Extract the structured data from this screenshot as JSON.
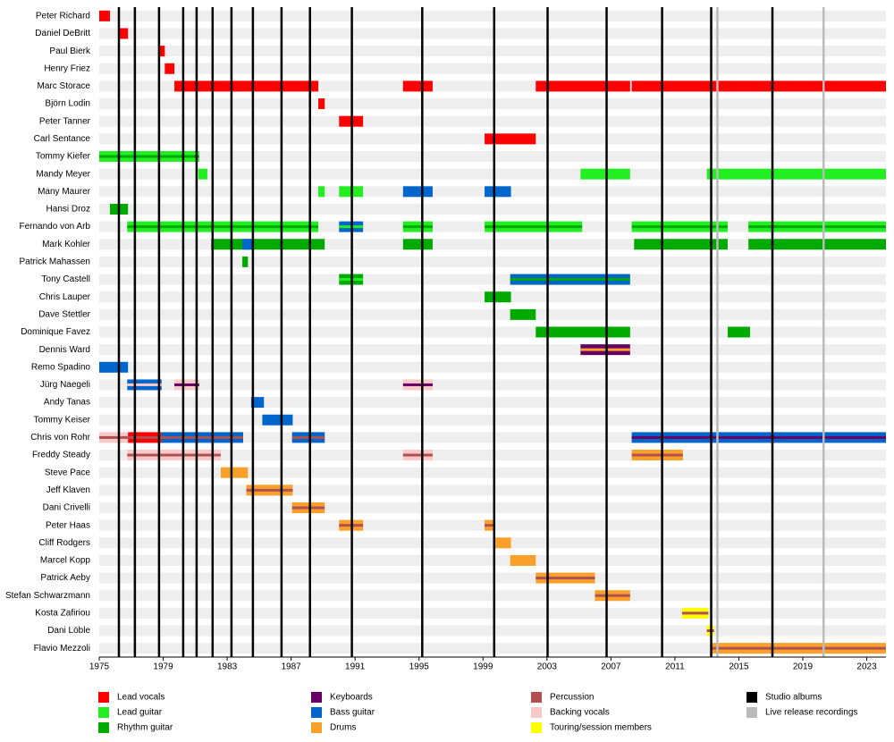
{
  "chart_data": {
    "type": "timeline",
    "xlim": [
      1975,
      2024.2
    ],
    "xticks": [
      1975,
      1979,
      1983,
      1987,
      1991,
      1995,
      1999,
      2003,
      2007,
      2011,
      2015,
      2019,
      2023
    ],
    "roles": [
      {
        "name": "Lead vocals",
        "color": "#ff0000"
      },
      {
        "name": "Lead guitar",
        "color": "#22ee22"
      },
      {
        "name": "Rhythm guitar",
        "color": "#00aa00"
      },
      {
        "name": "Keyboards",
        "color": "#660066"
      },
      {
        "name": "Bass guitar",
        "color": "#0066cc"
      },
      {
        "name": "Drums",
        "color": "#f9a02a"
      },
      {
        "name": "Percussion",
        "color": "#b05050"
      },
      {
        "name": "Backing vocals",
        "color": "#f9c8c8"
      },
      {
        "name": "Touring/session members",
        "color": "#ffff00"
      }
    ],
    "studio_albums": {
      "name": "Studio albums",
      "color": "#000000",
      "x": [
        1976.23,
        1977.23,
        1978.74,
        1980.25,
        1981.09,
        1982.09,
        1983.27,
        1984.61,
        1986.4,
        1988.18,
        1990.8,
        1995.2,
        1999.7,
        2003.04,
        2006.73,
        2010.2,
        2013.27,
        2017.1
      ]
    },
    "live_releases": {
      "name": "Live release recordings",
      "color": "#bbbbbb",
      "x": [
        2013.66,
        2020.3
      ]
    },
    "members": [
      {
        "name": "Peter Richard",
        "periods": [
          {
            "from": 1975,
            "to": 1975.67,
            "role": "Lead vocals"
          }
        ]
      },
      {
        "name": "Daniel DeBritt",
        "periods": [
          {
            "from": 1976.2,
            "to": 1976.8,
            "role": "Lead vocals"
          }
        ]
      },
      {
        "name": "Paul Bierk",
        "periods": [
          {
            "from": 1978.8,
            "to": 1979.1,
            "role": "Lead vocals"
          }
        ]
      },
      {
        "name": "Henry Friez",
        "periods": [
          {
            "from": 1979.1,
            "to": 1979.7,
            "role": "Lead vocals"
          }
        ]
      },
      {
        "name": "Marc Storace",
        "periods": [
          {
            "from": 1979.7,
            "to": 1988.7,
            "role": "Lead vocals"
          },
          {
            "from": 1994,
            "to": 1995.85,
            "role": "Lead vocals"
          },
          {
            "from": 2002.3,
            "to": 2008.2,
            "role": "Lead vocals"
          },
          {
            "from": 2008.3,
            "to": 2024.2,
            "role": "Lead vocals"
          }
        ]
      },
      {
        "name": "Björn Lodin",
        "periods": [
          {
            "from": 1988.7,
            "to": 1989.1,
            "role": "Lead vocals"
          }
        ]
      },
      {
        "name": "Peter Tanner",
        "periods": [
          {
            "from": 1990,
            "to": 1991.5,
            "role": "Lead vocals"
          }
        ]
      },
      {
        "name": "Carl Sentance",
        "periods": [
          {
            "from": 1999.1,
            "to": 2002.3,
            "role": "Lead vocals"
          }
        ]
      },
      {
        "name": "Tommy Kiefer",
        "periods": [
          {
            "from": 1975,
            "to": 1981.25,
            "role": "Lead guitar",
            "stripe": "Rhythm guitar"
          }
        ]
      },
      {
        "name": "Mandy Meyer",
        "periods": [
          {
            "from": 1981.2,
            "to": 1981.76,
            "role": "Lead guitar"
          },
          {
            "from": 2005.1,
            "to": 2008.2,
            "role": "Lead guitar"
          },
          {
            "from": 2013,
            "to": 2024.2,
            "role": "Lead guitar"
          }
        ]
      },
      {
        "name": "Many Maurer",
        "periods": [
          {
            "from": 1988.7,
            "to": 1989.1,
            "role": "Lead guitar"
          },
          {
            "from": 1990,
            "to": 1991.5,
            "role": "Lead guitar"
          },
          {
            "from": 1994,
            "to": 1995.85,
            "role": "Bass guitar"
          },
          {
            "from": 1999.1,
            "to": 2000.75,
            "role": "Bass guitar"
          }
        ]
      },
      {
        "name": "Hansi Droz",
        "periods": [
          {
            "from": 1975.67,
            "to": 1976.8,
            "role": "Rhythm guitar"
          }
        ]
      },
      {
        "name": "Fernando von Arb",
        "periods": [
          {
            "from": 1976.75,
            "to": 1988.7,
            "role": "Lead guitar",
            "stripe": "Rhythm guitar"
          },
          {
            "from": 1990,
            "to": 1991.5,
            "role": "Bass guitar",
            "stripe": "Lead guitar"
          },
          {
            "from": 1994,
            "to": 1995.85,
            "role": "Lead guitar",
            "stripe": "Rhythm guitar"
          },
          {
            "from": 1999.1,
            "to": 2005.2,
            "role": "Lead guitar",
            "stripe": "Rhythm guitar"
          },
          {
            "from": 2008.3,
            "to": 2014.3,
            "role": "Lead guitar",
            "stripe": "Rhythm guitar"
          },
          {
            "from": 2015.6,
            "to": 2024.2,
            "role": "Lead guitar",
            "stripe": "Rhythm guitar"
          }
        ]
      },
      {
        "name": "Mark Kohler",
        "periods": [
          {
            "from": 1982,
            "to": 1989.1,
            "role": "Rhythm guitar"
          },
          {
            "from": 1983.95,
            "to": 1984.55,
            "role": "Bass guitar"
          },
          {
            "from": 1994,
            "to": 1995.85,
            "role": "Rhythm guitar"
          },
          {
            "from": 2008.45,
            "to": 2014.3,
            "role": "Rhythm guitar"
          },
          {
            "from": 2015.6,
            "to": 2024.2,
            "role": "Rhythm guitar"
          }
        ]
      },
      {
        "name": "Patrick Mahassen",
        "periods": [
          {
            "from": 1983.95,
            "to": 1984.3,
            "role": "Rhythm guitar"
          }
        ]
      },
      {
        "name": "Tony Castell",
        "periods": [
          {
            "from": 1990,
            "to": 1991.5,
            "role": "Rhythm guitar",
            "stripe": "Lead guitar"
          },
          {
            "from": 2000.7,
            "to": 2008.2,
            "role": "Bass guitar",
            "stripe": "Rhythm guitar"
          }
        ]
      },
      {
        "name": "Chris Lauper",
        "periods": [
          {
            "from": 1999.1,
            "to": 2000.75,
            "role": "Rhythm guitar"
          }
        ]
      },
      {
        "name": "Dave Stettler",
        "periods": [
          {
            "from": 2000.7,
            "to": 2002.3,
            "role": "Rhythm guitar"
          }
        ]
      },
      {
        "name": "Dominique Favez",
        "periods": [
          {
            "from": 2002.3,
            "to": 2008.2,
            "role": "Rhythm guitar"
          },
          {
            "from": 2014.3,
            "to": 2015.7,
            "role": "Rhythm guitar"
          }
        ]
      },
      {
        "name": "Dennis Ward",
        "periods": [
          {
            "from": 2005.1,
            "to": 2008.2,
            "role": "Keyboards",
            "stripe": "Drums"
          }
        ]
      },
      {
        "name": "Remo Spadino",
        "periods": [
          {
            "from": 1975,
            "to": 1976.8,
            "role": "Bass guitar"
          }
        ]
      },
      {
        "name": "Jürg Naegeli",
        "periods": [
          {
            "from": 1976.75,
            "to": 1978.9,
            "role": "Bass guitar",
            "stripe": "Backing vocals"
          },
          {
            "from": 1979.7,
            "to": 1981.25,
            "role": "Backing vocals",
            "stripe": "Keyboards"
          },
          {
            "from": 1994,
            "to": 1995.85,
            "role": "Backing vocals",
            "stripe": "Keyboards"
          }
        ]
      },
      {
        "name": "Andy Tanas",
        "periods": [
          {
            "from": 1984.5,
            "to": 1985.3,
            "role": "Bass guitar"
          }
        ]
      },
      {
        "name": "Tommy Keiser",
        "periods": [
          {
            "from": 1985.2,
            "to": 1987.1,
            "role": "Bass guitar"
          }
        ]
      },
      {
        "name": "Chris von Rohr",
        "periods": [
          {
            "from": 1975,
            "to": 1976.8,
            "role": "Backing vocals",
            "stripe": "Percussion"
          },
          {
            "from": 1976.8,
            "to": 1978.9,
            "role": "Lead vocals",
            "stripe": "Percussion"
          },
          {
            "from": 1978.9,
            "to": 1984,
            "role": "Bass guitar",
            "stripe": "Percussion"
          },
          {
            "from": 1987.06,
            "to": 1989.1,
            "role": "Bass guitar",
            "stripe": "Percussion"
          },
          {
            "from": 2008.3,
            "to": 2024.2,
            "role": "Bass guitar",
            "stripe": "Keyboards"
          }
        ]
      },
      {
        "name": "Freddy Steady",
        "periods": [
          {
            "from": 1976.75,
            "to": 1982.6,
            "role": "Backing vocals",
            "stripe": "Percussion"
          },
          {
            "from": 1994,
            "to": 1995.85,
            "role": "Backing vocals",
            "stripe": "Percussion"
          },
          {
            "from": 2008.3,
            "to": 2011.5,
            "role": "Drums",
            "stripe": "Percussion"
          }
        ]
      },
      {
        "name": "Steve Pace",
        "periods": [
          {
            "from": 1982.6,
            "to": 1984.3,
            "role": "Drums"
          }
        ]
      },
      {
        "name": "Jeff Klaven",
        "periods": [
          {
            "from": 1984.2,
            "to": 1987.1,
            "role": "Drums",
            "stripe": "Percussion"
          }
        ]
      },
      {
        "name": "Dani Crivelli",
        "periods": [
          {
            "from": 1987.06,
            "to": 1989.1,
            "role": "Drums",
            "stripe": "Percussion"
          }
        ]
      },
      {
        "name": "Peter Haas",
        "periods": [
          {
            "from": 1990,
            "to": 1991.5,
            "role": "Drums",
            "stripe": "Percussion"
          },
          {
            "from": 1999.1,
            "to": 1999.75,
            "role": "Drums",
            "stripe": "Percussion"
          }
        ]
      },
      {
        "name": "Cliff Rodgers",
        "periods": [
          {
            "from": 1999.75,
            "to": 2000.75,
            "role": "Drums"
          }
        ]
      },
      {
        "name": "Marcel Kopp",
        "periods": [
          {
            "from": 2000.7,
            "to": 2002.3,
            "role": "Drums"
          }
        ]
      },
      {
        "name": "Patrick Aeby",
        "periods": [
          {
            "from": 2002.3,
            "to": 2006,
            "role": "Drums",
            "stripe": "Percussion"
          }
        ]
      },
      {
        "name": "Stefan Schwarzmann",
        "periods": [
          {
            "from": 2006,
            "to": 2008.2,
            "role": "Drums",
            "stripe": "Percussion"
          }
        ]
      },
      {
        "name": "Kosta Zafiriou",
        "periods": [
          {
            "from": 2011.45,
            "to": 2013.1,
            "role": "Touring/session members",
            "stripe": "Percussion"
          }
        ]
      },
      {
        "name": "Dani Löble",
        "periods": [
          {
            "from": 2013,
            "to": 2013.45,
            "role": "Touring/session members",
            "stripe": "Percussion"
          }
        ]
      },
      {
        "name": "Flavio Mezzoli",
        "periods": [
          {
            "from": 2013.3,
            "to": 2024.2,
            "role": "Drums",
            "stripe": "Percussion"
          }
        ]
      }
    ]
  }
}
